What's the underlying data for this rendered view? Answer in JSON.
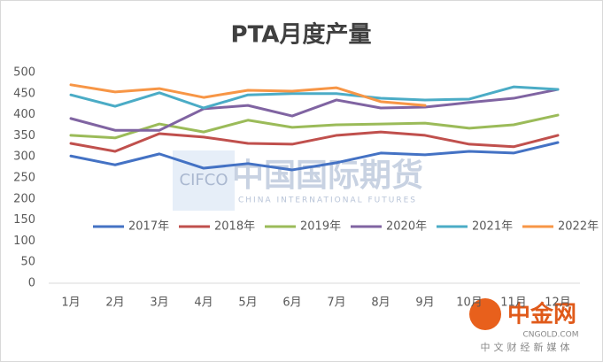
{
  "chart_data": {
    "type": "line",
    "title": "PTA月度产量",
    "categories": [
      "1月",
      "2月",
      "3月",
      "4月",
      "5月",
      "6月",
      "7月",
      "8月",
      "9月",
      "10月",
      "11月",
      "12月"
    ],
    "series": [
      {
        "name": "2017年",
        "color": "#4472c4",
        "values": [
          302,
          281,
          307,
          273,
          284,
          269,
          286,
          309,
          305,
          313,
          309,
          334
        ]
      },
      {
        "name": "2018年",
        "color": "#c0504d",
        "values": [
          332,
          313,
          355,
          347,
          332,
          330,
          351,
          359,
          351,
          330,
          324,
          351
        ]
      },
      {
        "name": "2019年",
        "color": "#9bbb59",
        "values": [
          351,
          345,
          378,
          359,
          387,
          370,
          376,
          378,
          380,
          368,
          376,
          399
        ]
      },
      {
        "name": "2020年",
        "color": "#8064a2",
        "values": [
          391,
          363,
          363,
          414,
          422,
          397,
          435,
          416,
          418,
          429,
          439,
          460
        ]
      },
      {
        "name": "2021年",
        "color": "#4bacc6",
        "values": [
          447,
          420,
          452,
          416,
          447,
          450,
          450,
          439,
          435,
          437,
          466,
          460
        ]
      },
      {
        "name": "2022年",
        "color": "#f79646",
        "values": [
          471,
          454,
          462,
          441,
          458,
          456,
          464,
          431,
          422,
          null,
          null,
          null
        ]
      }
    ],
    "ylim": [
      0,
      500
    ],
    "yticks": [
      0,
      50,
      100,
      150,
      200,
      250,
      300,
      350,
      400,
      450,
      500
    ],
    "grid": false
  },
  "watermarks": {
    "cifco": "CIFCO",
    "cifco_cn": "中国国际期货",
    "cifco_en": "CHINA INTERNATIONAL FUTURES",
    "cngold": "中金网",
    "cngold_url": "CNGOLD.COM",
    "cngold_tag": "中文财经新媒体"
  }
}
